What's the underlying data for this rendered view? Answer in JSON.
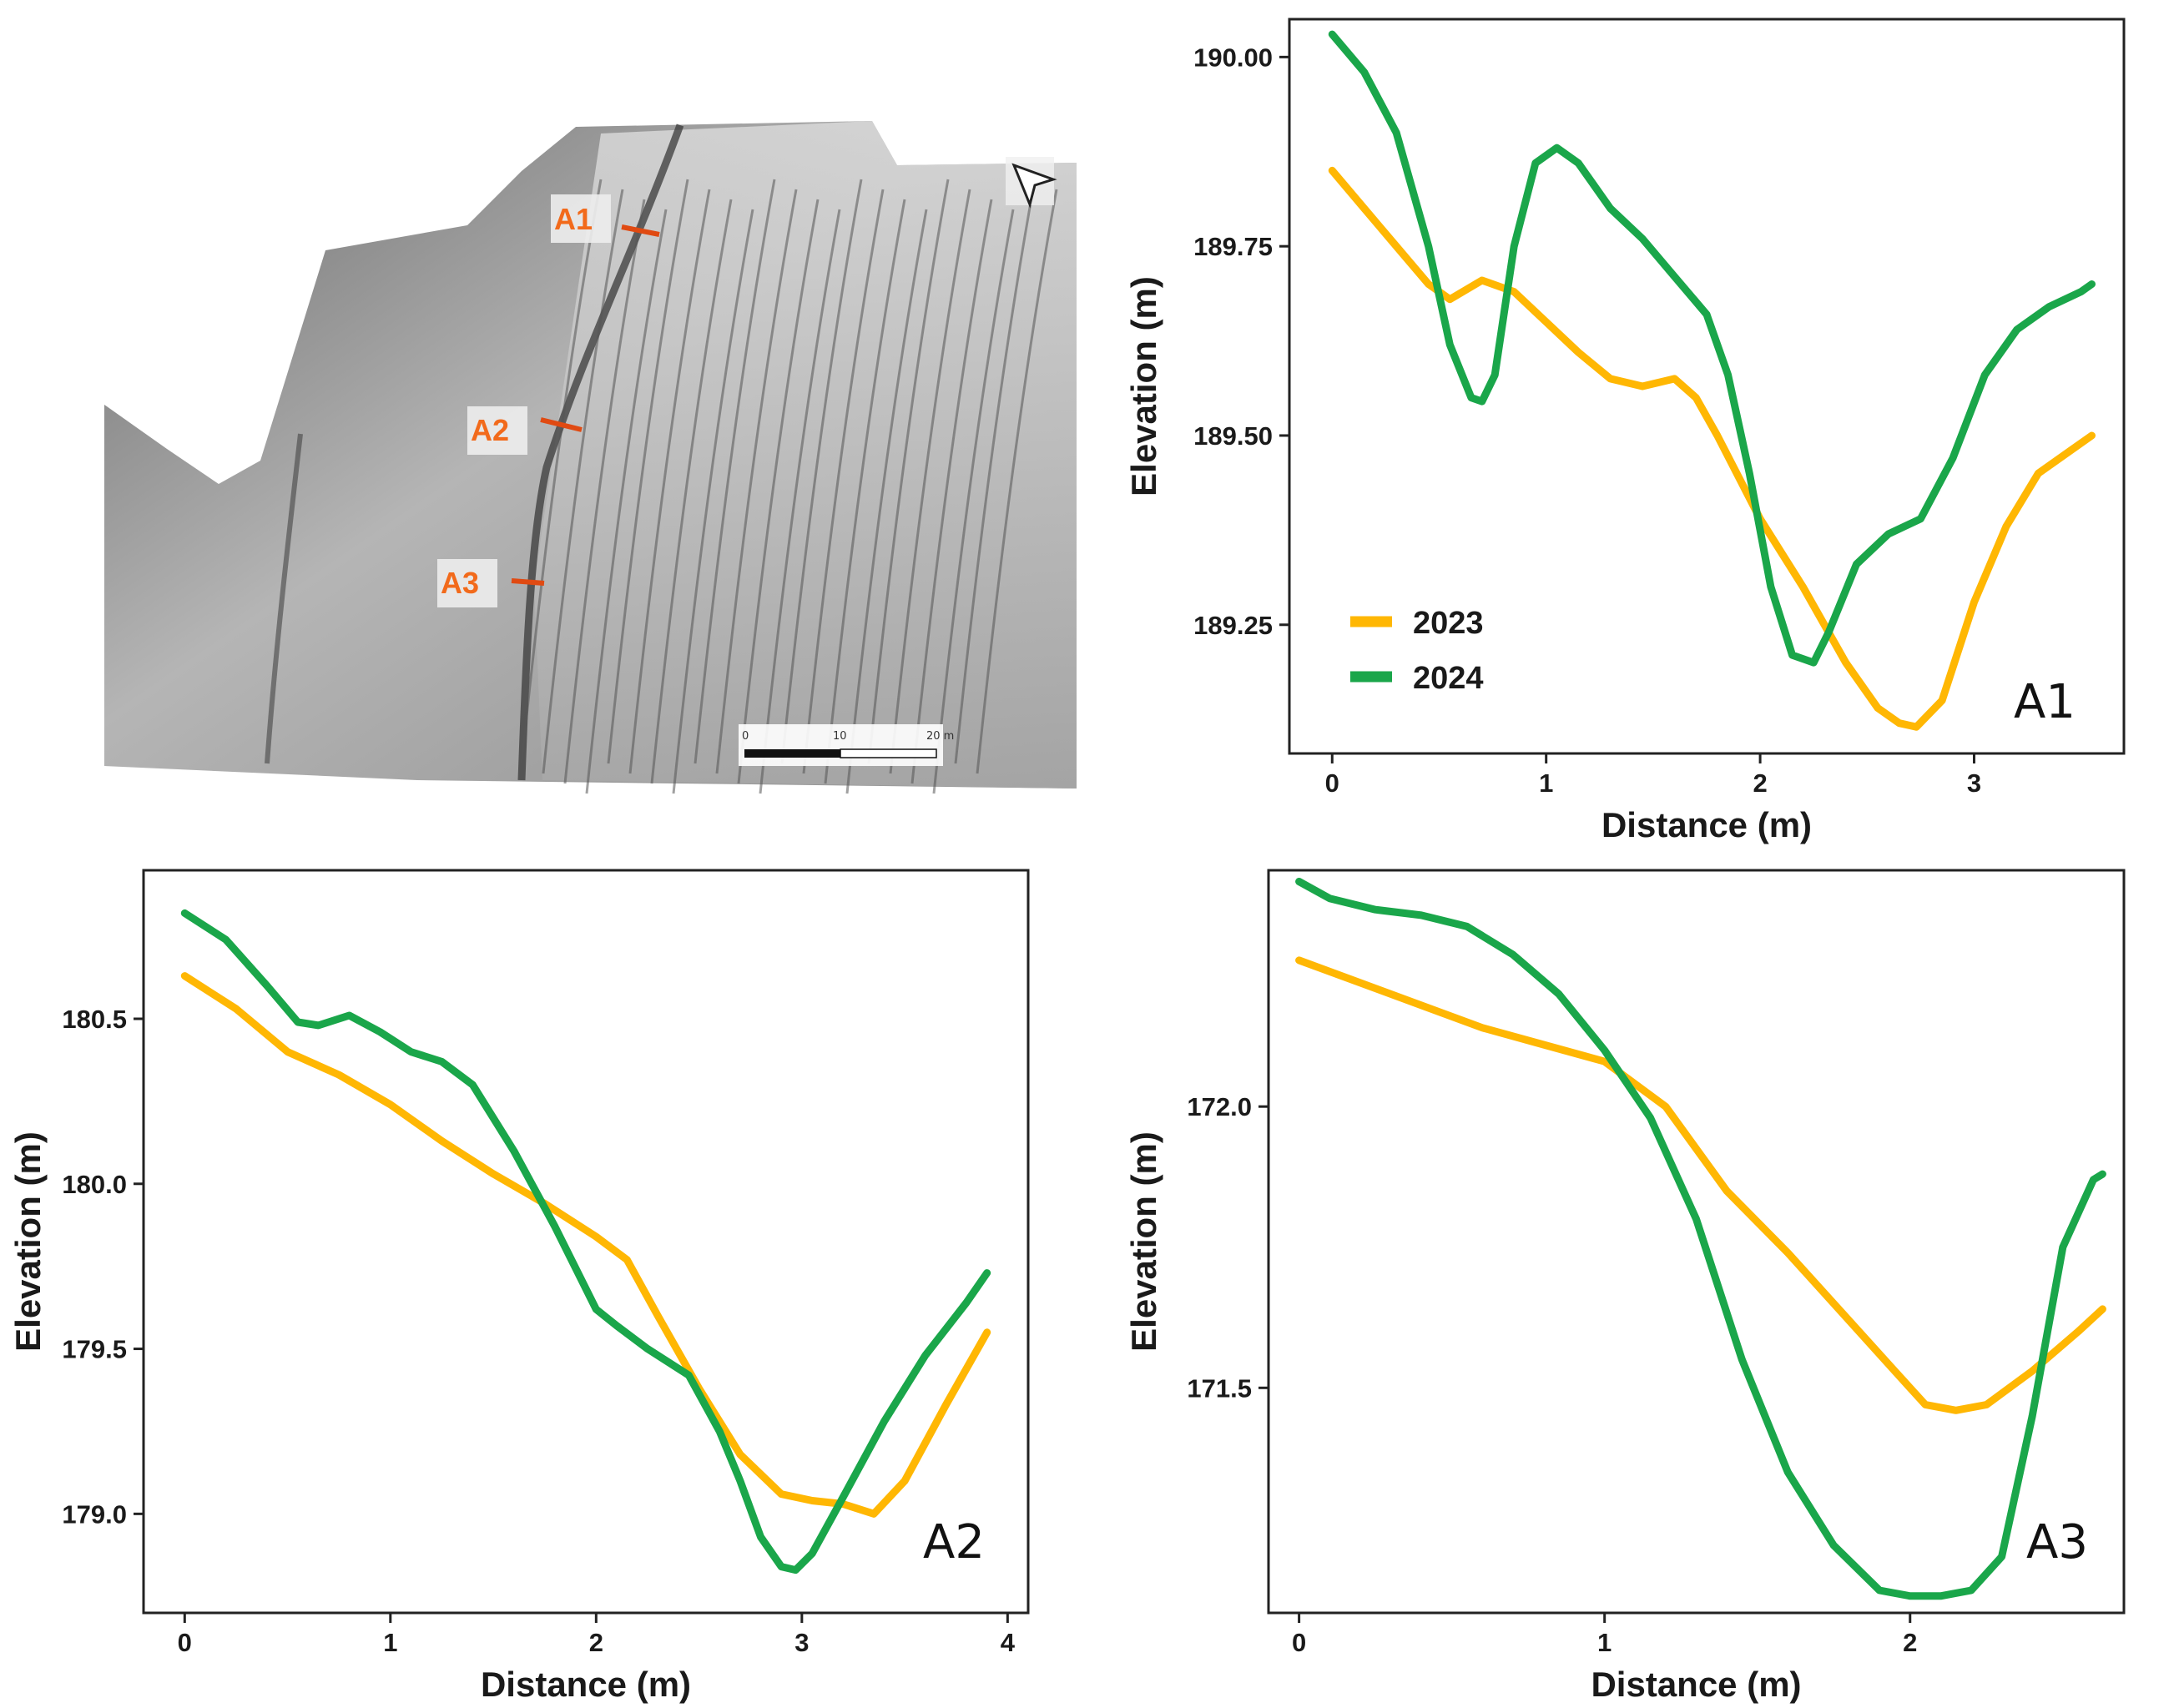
{
  "colors": {
    "series_2023": "#FFB703",
    "series_2024": "#1AA64A",
    "profile_marker": "#E04A12",
    "map_label": "#F26A1B",
    "map_label_bg": "#EDEDED"
  },
  "map": {
    "profile_labels": [
      "A1",
      "A2",
      "A3"
    ],
    "scale_ticks": [
      "0",
      "10",
      "20 m"
    ],
    "north_arrow_icon": "north-arrow-icon"
  },
  "chart_data": [
    {
      "id": "A1",
      "type": "line",
      "panel_label": "A1",
      "title": "",
      "xlabel": "Distance (m)",
      "ylabel": "Elevation (m)",
      "xlim": [
        -0.2,
        3.7
      ],
      "ylim": [
        189.08,
        190.05
      ],
      "xticks": [
        0,
        1,
        2,
        3
      ],
      "xtick_labels": [
        "0",
        "1",
        "2",
        "3"
      ],
      "yticks": [
        189.25,
        189.5,
        189.75,
        190.0
      ],
      "ytick_labels": [
        "189.25",
        "189.50",
        "189.75",
        "190.00"
      ],
      "legend": {
        "position": "bottom-left",
        "entries": [
          "2023",
          "2024"
        ]
      },
      "series": [
        {
          "name": "2023",
          "color": "#FFB703",
          "x": [
            0,
            0.15,
            0.3,
            0.45,
            0.55,
            0.7,
            0.85,
            1.0,
            1.15,
            1.3,
            1.45,
            1.6,
            1.7,
            1.8,
            2.0,
            2.2,
            2.4,
            2.55,
            2.65,
            2.73,
            2.85,
            3.0,
            3.15,
            3.3,
            3.45,
            3.55
          ],
          "y": [
            189.85,
            189.8,
            189.75,
            189.7,
            189.68,
            189.705,
            189.69,
            189.65,
            189.61,
            189.575,
            189.565,
            189.575,
            189.55,
            189.5,
            189.39,
            189.3,
            189.2,
            189.14,
            189.12,
            189.115,
            189.15,
            189.28,
            189.38,
            189.45,
            189.48,
            189.5
          ]
        },
        {
          "name": "2024",
          "color": "#1AA64A",
          "x": [
            0,
            0.15,
            0.3,
            0.45,
            0.55,
            0.65,
            0.7,
            0.76,
            0.85,
            0.95,
            1.05,
            1.15,
            1.3,
            1.45,
            1.6,
            1.75,
            1.85,
            1.95,
            2.05,
            2.15,
            2.25,
            2.32,
            2.45,
            2.6,
            2.75,
            2.9,
            3.05,
            3.2,
            3.35,
            3.5,
            3.55
          ],
          "y": [
            190.03,
            189.98,
            189.9,
            189.75,
            189.62,
            189.55,
            189.545,
            189.58,
            189.75,
            189.86,
            189.88,
            189.86,
            189.8,
            189.76,
            189.71,
            189.66,
            189.58,
            189.45,
            189.3,
            189.21,
            189.2,
            189.24,
            189.33,
            189.37,
            189.39,
            189.47,
            189.58,
            189.64,
            189.67,
            189.69,
            189.7
          ]
        }
      ]
    },
    {
      "id": "A2",
      "type": "line",
      "panel_label": "A2",
      "title": "",
      "xlabel": "Distance (m)",
      "ylabel": "Elevation (m)",
      "xlim": [
        -0.2,
        4.1
      ],
      "ylim": [
        178.7,
        180.95
      ],
      "xticks": [
        0,
        1,
        2,
        3,
        4
      ],
      "xtick_labels": [
        "0",
        "1",
        "2",
        "3",
        "4"
      ],
      "yticks": [
        179.0,
        179.5,
        180.0,
        180.5
      ],
      "ytick_labels": [
        "179.0",
        "179.5",
        "180.0",
        "180.5"
      ],
      "series": [
        {
          "name": "2023",
          "color": "#FFB703",
          "x": [
            0,
            0.25,
            0.5,
            0.75,
            1.0,
            1.25,
            1.5,
            1.75,
            2.0,
            2.15,
            2.3,
            2.5,
            2.7,
            2.9,
            3.05,
            3.2,
            3.35,
            3.5,
            3.7,
            3.9
          ],
          "y": [
            180.63,
            180.53,
            180.4,
            180.33,
            180.24,
            180.13,
            180.03,
            179.94,
            179.84,
            179.77,
            179.6,
            179.38,
            179.18,
            179.06,
            179.04,
            179.03,
            179.0,
            179.1,
            179.33,
            179.55
          ]
        },
        {
          "name": "2024",
          "color": "#1AA64A",
          "x": [
            0,
            0.2,
            0.4,
            0.55,
            0.65,
            0.8,
            0.95,
            1.1,
            1.25,
            1.4,
            1.6,
            1.8,
            2.0,
            2.1,
            2.25,
            2.45,
            2.6,
            2.7,
            2.8,
            2.9,
            2.97,
            3.05,
            3.2,
            3.4,
            3.6,
            3.8,
            3.9
          ],
          "y": [
            180.82,
            180.74,
            180.6,
            180.49,
            180.48,
            180.51,
            180.46,
            180.4,
            180.37,
            180.3,
            180.1,
            179.87,
            179.62,
            179.57,
            179.5,
            179.42,
            179.25,
            179.1,
            178.93,
            178.84,
            178.83,
            178.88,
            179.05,
            179.28,
            179.48,
            179.64,
            179.73
          ]
        }
      ]
    },
    {
      "id": "A3",
      "type": "line",
      "panel_label": "A3",
      "title": "",
      "xlabel": "Distance (m)",
      "ylabel": "Elevation (m)",
      "xlim": [
        -0.1,
        2.7
      ],
      "ylim": [
        171.1,
        172.42
      ],
      "xticks": [
        0,
        1,
        2
      ],
      "xtick_labels": [
        "0",
        "1",
        "2"
      ],
      "yticks": [
        171.5,
        172.0
      ],
      "ytick_labels": [
        "171.5",
        "172.0"
      ],
      "series": [
        {
          "name": "2023",
          "color": "#FFB703",
          "x": [
            0,
            0.2,
            0.4,
            0.6,
            0.8,
            1.0,
            1.2,
            1.4,
            1.6,
            1.8,
            1.95,
            2.05,
            2.15,
            2.25,
            2.4,
            2.55,
            2.63
          ],
          "y": [
            172.26,
            172.22,
            172.18,
            172.14,
            172.11,
            172.08,
            172.0,
            171.85,
            171.74,
            171.62,
            171.53,
            171.47,
            171.46,
            171.47,
            171.53,
            171.6,
            171.64
          ]
        },
        {
          "name": "2024",
          "color": "#1AA64A",
          "x": [
            0,
            0.1,
            0.25,
            0.4,
            0.55,
            0.7,
            0.85,
            1.0,
            1.15,
            1.3,
            1.45,
            1.6,
            1.75,
            1.9,
            2.0,
            2.1,
            2.2,
            2.3,
            2.4,
            2.5,
            2.6,
            2.63
          ],
          "y": [
            172.4,
            172.37,
            172.35,
            172.34,
            172.32,
            172.27,
            172.2,
            172.1,
            171.98,
            171.8,
            171.55,
            171.35,
            171.22,
            171.14,
            171.13,
            171.13,
            171.14,
            171.2,
            171.45,
            171.75,
            171.87,
            171.88
          ]
        }
      ]
    }
  ]
}
